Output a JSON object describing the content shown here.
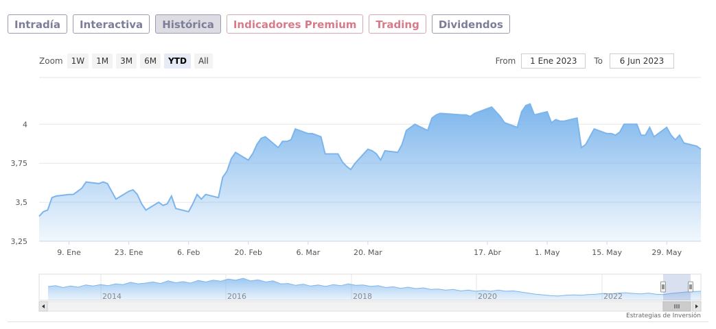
{
  "tabs": [
    {
      "label": "Intradía",
      "style": "normal"
    },
    {
      "label": "Interactiva",
      "style": "normal"
    },
    {
      "label": "Histórica",
      "style": "active"
    },
    {
      "label": "Indicadores Premium",
      "style": "premium"
    },
    {
      "label": "Trading",
      "style": "premium"
    },
    {
      "label": "Dividendos",
      "style": "normal"
    }
  ],
  "zoom": {
    "label": "Zoom",
    "buttons": [
      {
        "label": "1W",
        "active": false
      },
      {
        "label": "1M",
        "active": false
      },
      {
        "label": "3M",
        "active": false
      },
      {
        "label": "6M",
        "active": false
      },
      {
        "label": "YTD",
        "active": true
      },
      {
        "label": "All",
        "active": false
      }
    ]
  },
  "range": {
    "from_label": "From",
    "from_value": "1 Ene 2023",
    "to_label": "To",
    "to_value": "6 Jun 2023"
  },
  "credit": "Estrategias de Inversión",
  "chart_data": {
    "type": "area",
    "x_start": "2023-01-02",
    "x_end": "2023-06-06",
    "ylim": [
      3.25,
      4.3
    ],
    "ytick_values": [
      3.25,
      3.5,
      3.75,
      4
    ],
    "ytick_labels": [
      "3,25",
      "3,5",
      "3,75",
      "4"
    ],
    "xticks": [
      {
        "date": "2023-01-09",
        "label": "9. Ene"
      },
      {
        "date": "2023-01-23",
        "label": "23. Ene"
      },
      {
        "date": "2023-02-06",
        "label": "6. Feb"
      },
      {
        "date": "2023-02-20",
        "label": "20. Feb"
      },
      {
        "date": "2023-03-06",
        "label": "6. Mar"
      },
      {
        "date": "2023-03-20",
        "label": "20. Mar"
      },
      {
        "date": "2023-04-17",
        "label": "17. Abr"
      },
      {
        "date": "2023-05-01",
        "label": "1. May"
      },
      {
        "date": "2023-05-15",
        "label": "15. May"
      },
      {
        "date": "2023-05-29",
        "label": "29. May"
      }
    ],
    "grid": true,
    "color": "#7cb5ec",
    "series": [
      {
        "points": [
          [
            "2023-01-02",
            3.41
          ],
          [
            "2023-01-03",
            3.44
          ],
          [
            "2023-01-04",
            3.45
          ],
          [
            "2023-01-05",
            3.53
          ],
          [
            "2023-01-06",
            3.54
          ],
          [
            "2023-01-09",
            3.55
          ],
          [
            "2023-01-10",
            3.55
          ],
          [
            "2023-01-11",
            3.57
          ],
          [
            "2023-01-12",
            3.59
          ],
          [
            "2023-01-13",
            3.63
          ],
          [
            "2023-01-16",
            3.62
          ],
          [
            "2023-01-17",
            3.63
          ],
          [
            "2023-01-18",
            3.62
          ],
          [
            "2023-01-19",
            3.57
          ],
          [
            "2023-01-20",
            3.52
          ],
          [
            "2023-01-23",
            3.57
          ],
          [
            "2023-01-24",
            3.58
          ],
          [
            "2023-01-25",
            3.55
          ],
          [
            "2023-01-26",
            3.49
          ],
          [
            "2023-01-27",
            3.45
          ],
          [
            "2023-01-30",
            3.5
          ],
          [
            "2023-01-31",
            3.48
          ],
          [
            "2023-02-01",
            3.49
          ],
          [
            "2023-02-02",
            3.54
          ],
          [
            "2023-02-03",
            3.46
          ],
          [
            "2023-02-06",
            3.44
          ],
          [
            "2023-02-07",
            3.49
          ],
          [
            "2023-02-08",
            3.55
          ],
          [
            "2023-02-09",
            3.52
          ],
          [
            "2023-02-10",
            3.55
          ],
          [
            "2023-02-13",
            3.53
          ],
          [
            "2023-02-14",
            3.66
          ],
          [
            "2023-02-15",
            3.7
          ],
          [
            "2023-02-16",
            3.78
          ],
          [
            "2023-02-17",
            3.82
          ],
          [
            "2023-02-20",
            3.77
          ],
          [
            "2023-02-21",
            3.81
          ],
          [
            "2023-02-22",
            3.87
          ],
          [
            "2023-02-23",
            3.91
          ],
          [
            "2023-02-24",
            3.92
          ],
          [
            "2023-02-27",
            3.85
          ],
          [
            "2023-02-28",
            3.89
          ],
          [
            "2023-03-01",
            3.89
          ],
          [
            "2023-03-02",
            3.9
          ],
          [
            "2023-03-03",
            3.97
          ],
          [
            "2023-03-06",
            3.94
          ],
          [
            "2023-03-07",
            3.94
          ],
          [
            "2023-03-08",
            3.93
          ],
          [
            "2023-03-09",
            3.92
          ],
          [
            "2023-03-10",
            3.81
          ],
          [
            "2023-03-13",
            3.81
          ],
          [
            "2023-03-14",
            3.76
          ],
          [
            "2023-03-15",
            3.73
          ],
          [
            "2023-03-16",
            3.71
          ],
          [
            "2023-03-17",
            3.75
          ],
          [
            "2023-03-20",
            3.84
          ],
          [
            "2023-03-21",
            3.83
          ],
          [
            "2023-03-22",
            3.81
          ],
          [
            "2023-03-23",
            3.77
          ],
          [
            "2023-03-24",
            3.83
          ],
          [
            "2023-03-27",
            3.82
          ],
          [
            "2023-03-28",
            3.87
          ],
          [
            "2023-03-29",
            3.96
          ],
          [
            "2023-03-30",
            3.98
          ],
          [
            "2023-03-31",
            4.0
          ],
          [
            "2023-04-03",
            3.96
          ],
          [
            "2023-04-04",
            4.04
          ],
          [
            "2023-04-05",
            4.06
          ],
          [
            "2023-04-06",
            4.07
          ],
          [
            "2023-04-11",
            4.06
          ],
          [
            "2023-04-12",
            4.06
          ],
          [
            "2023-04-13",
            4.05
          ],
          [
            "2023-04-14",
            4.07
          ],
          [
            "2023-04-17",
            4.1
          ],
          [
            "2023-04-18",
            4.11
          ],
          [
            "2023-04-19",
            4.08
          ],
          [
            "2023-04-20",
            4.05
          ],
          [
            "2023-04-21",
            4.01
          ],
          [
            "2023-04-24",
            3.98
          ],
          [
            "2023-04-25",
            4.08
          ],
          [
            "2023-04-26",
            4.12
          ],
          [
            "2023-04-27",
            4.13
          ],
          [
            "2023-04-28",
            4.06
          ],
          [
            "2023-05-01",
            4.08
          ],
          [
            "2023-05-02",
            4.01
          ],
          [
            "2023-05-03",
            4.03
          ],
          [
            "2023-05-04",
            4.02
          ],
          [
            "2023-05-05",
            4.02
          ],
          [
            "2023-05-08",
            4.04
          ],
          [
            "2023-05-09",
            3.85
          ],
          [
            "2023-05-10",
            3.87
          ],
          [
            "2023-05-11",
            3.92
          ],
          [
            "2023-05-12",
            3.97
          ],
          [
            "2023-05-15",
            3.94
          ],
          [
            "2023-05-16",
            3.94
          ],
          [
            "2023-05-17",
            3.93
          ],
          [
            "2023-05-18",
            3.95
          ],
          [
            "2023-05-19",
            4.0
          ],
          [
            "2023-05-22",
            4.0
          ],
          [
            "2023-05-23",
            3.93
          ],
          [
            "2023-05-24",
            3.93
          ],
          [
            "2023-05-25",
            3.98
          ],
          [
            "2023-05-26",
            3.92
          ],
          [
            "2023-05-29",
            3.98
          ],
          [
            "2023-05-30",
            3.93
          ],
          [
            "2023-05-31",
            3.9
          ],
          [
            "2023-06-01",
            3.93
          ],
          [
            "2023-06-02",
            3.88
          ],
          [
            "2023-06-05",
            3.86
          ],
          [
            "2023-06-06",
            3.84
          ]
        ]
      }
    ]
  },
  "navigator": {
    "year_labels": [
      "2014",
      "2016",
      "2018",
      "2020",
      "2022"
    ],
    "series": [
      0.55,
      0.6,
      0.5,
      0.58,
      0.52,
      0.64,
      0.58,
      0.66,
      0.6,
      0.7,
      0.66,
      0.78,
      0.7,
      0.74,
      0.8,
      0.72,
      0.86,
      0.76,
      0.82,
      0.74,
      0.88,
      0.8,
      0.9,
      0.84,
      0.96,
      0.9,
      1.0,
      0.86,
      0.92,
      0.8,
      0.86,
      0.7,
      0.72,
      0.62,
      0.68,
      0.58,
      0.64,
      0.56,
      0.66,
      0.6,
      0.7,
      0.62,
      0.64,
      0.56,
      0.6,
      0.5,
      0.54,
      0.46,
      0.52,
      0.44,
      0.48,
      0.4,
      0.42,
      0.36,
      0.4,
      0.32,
      0.36,
      0.3,
      0.34,
      0.3,
      0.36,
      0.3,
      0.32,
      0.26,
      0.2,
      0.14,
      0.1,
      0.06,
      0.04,
      0.08,
      0.1,
      0.08,
      0.12,
      0.14,
      0.18,
      0.16,
      0.2,
      0.22,
      0.18,
      0.16,
      0.2,
      0.14,
      0.12,
      0.18,
      0.22,
      0.26,
      0.28,
      0.3
    ]
  }
}
